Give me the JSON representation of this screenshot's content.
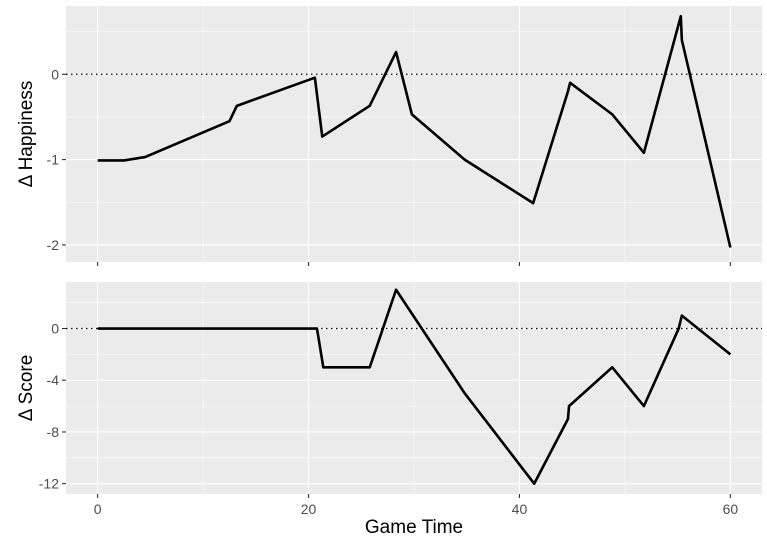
{
  "chart_data": [
    {
      "type": "line",
      "title": "",
      "xlabel": "",
      "ylabel": "Δ Happiness",
      "xlim": [
        -3,
        63
      ],
      "ylim": [
        -2.2,
        0.8
      ],
      "xticks": [
        0,
        20,
        40,
        60
      ],
      "yticks": [
        -2,
        -1,
        0
      ],
      "ytick_labels": [
        "-2",
        "-1",
        "0"
      ],
      "reference_line": 0,
      "grid": true,
      "series": [
        {
          "x": [
            0,
            2.5,
            4.5,
            12.5,
            13.2,
            20.6,
            21.3,
            25.8,
            28.3,
            29.8,
            34.8,
            41.3,
            44.6,
            44.8,
            48.8,
            51.8,
            55.3,
            55.4,
            60
          ],
          "y": [
            -1.01,
            -1.01,
            -0.97,
            -0.55,
            -0.37,
            -0.04,
            -0.73,
            -0.37,
            0.26,
            -0.47,
            -1.0,
            -1.51,
            -0.2,
            -0.1,
            -0.47,
            -0.92,
            0.68,
            0.4,
            -2.03
          ]
        }
      ]
    },
    {
      "type": "line",
      "title": "",
      "xlabel": "Game Time",
      "ylabel": "Δ Score",
      "xlim": [
        -3,
        63
      ],
      "ylim": [
        -12.8,
        3.6
      ],
      "xticks": [
        0,
        20,
        40,
        60
      ],
      "xtick_labels": [
        "0",
        "20",
        "40",
        "60"
      ],
      "yticks": [
        -12,
        -8,
        -4,
        0
      ],
      "ytick_labels": [
        "-12",
        "-8",
        "-4",
        "0"
      ],
      "reference_line": 0,
      "grid": true,
      "series": [
        {
          "x": [
            0,
            20.8,
            21.4,
            25.8,
            28.3,
            34.8,
            41.4,
            44.6,
            44.7,
            48.8,
            51.8,
            55.1,
            55.4,
            60
          ],
          "y": [
            0,
            0,
            -3,
            -3,
            3,
            -5,
            -12,
            -7,
            -6,
            -3,
            -6,
            0,
            1,
            -2
          ]
        }
      ]
    }
  ]
}
